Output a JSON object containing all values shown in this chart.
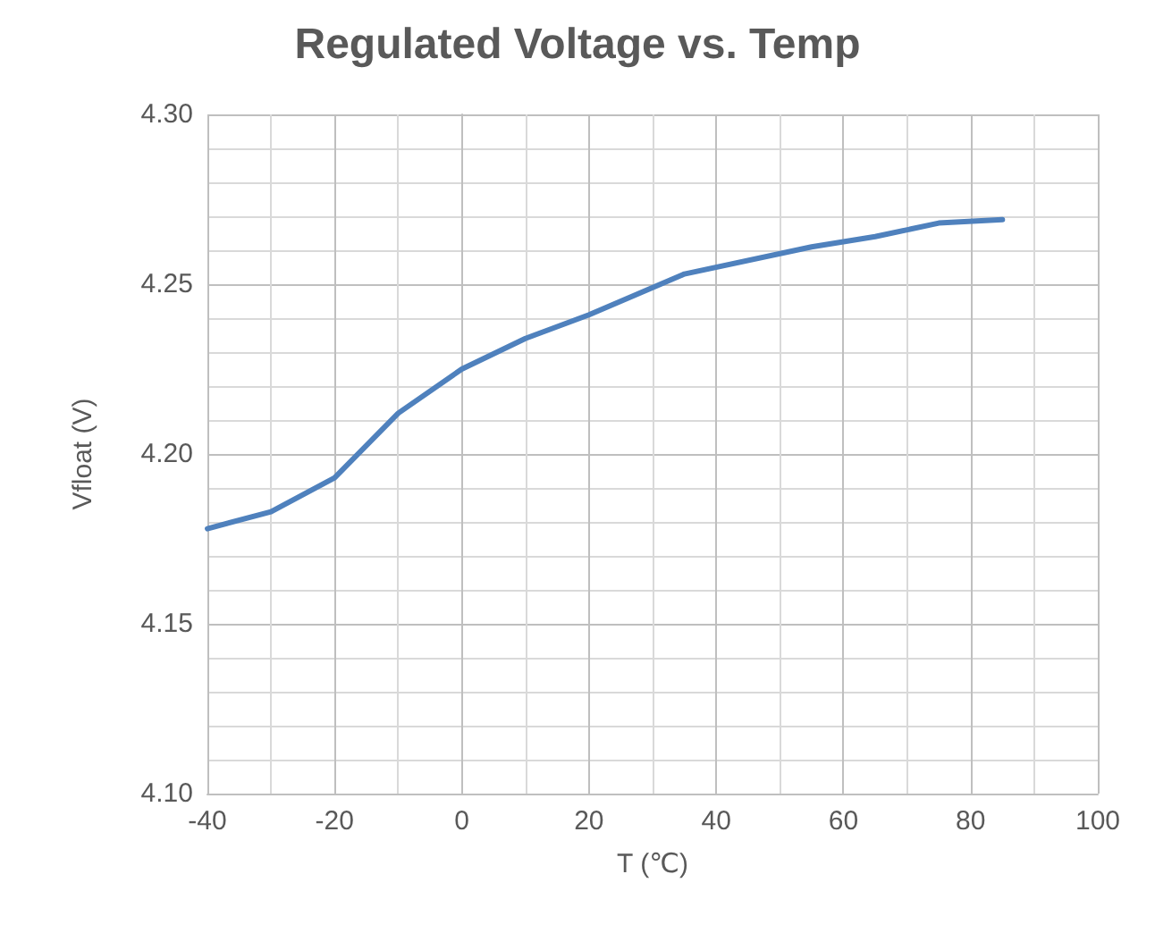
{
  "chart_data": {
    "type": "line",
    "title": "Regulated Voltage vs. Temp",
    "xlabel": "T (℃)",
    "ylabel": "Vfloat (V)",
    "x": [
      -40,
      -30,
      -20,
      -10,
      0,
      10,
      20,
      35,
      55,
      65,
      75,
      85
    ],
    "series": [
      {
        "color": "#4f81bd",
        "values": [
          4.178,
          4.183,
          4.193,
          4.212,
          4.225,
          4.234,
          4.241,
          4.253,
          4.261,
          4.264,
          4.268,
          4.269
        ]
      }
    ],
    "xlim": [
      -40,
      100
    ],
    "xticks": [
      -40,
      -20,
      0,
      20,
      40,
      60,
      80,
      100
    ],
    "ylim": [
      4.1,
      4.3
    ],
    "yticks": [
      {
        "value": 4.1,
        "label": "4.10"
      },
      {
        "value": 4.15,
        "label": "4.15"
      },
      {
        "value": 4.2,
        "label": "4.20"
      },
      {
        "value": 4.25,
        "label": "4.25"
      },
      {
        "value": 4.3,
        "label": "4.30"
      }
    ],
    "grid": true,
    "marker": "none",
    "line_style": "solid"
  }
}
